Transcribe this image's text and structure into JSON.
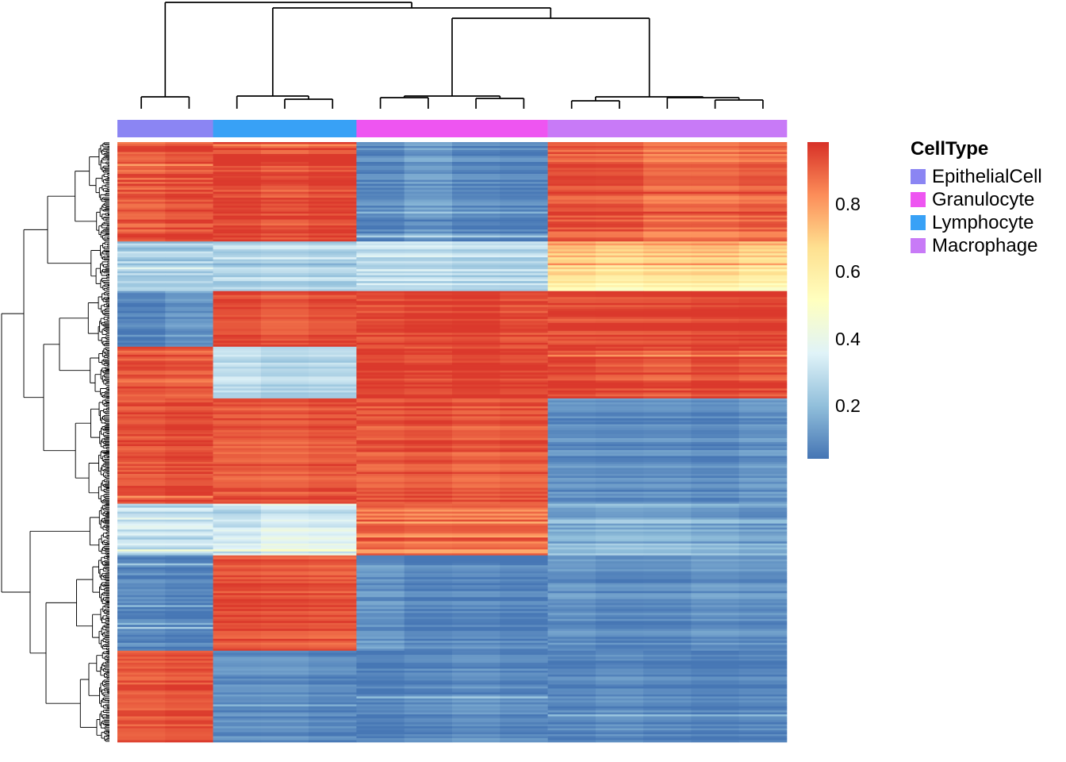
{
  "figure": {
    "kind": "clustered-heatmap"
  },
  "legend": {
    "title": "CellType",
    "items": [
      {
        "label": "EpithelialCell",
        "color": "#8b85f3"
      },
      {
        "label": "Granulocyte",
        "color": "#ee55f1"
      },
      {
        "label": "Lymphocyte",
        "color": "#38a1f6"
      },
      {
        "label": "Macrophage",
        "color": "#c87af7"
      }
    ]
  },
  "colorbar": {
    "ticks": [
      "0.8",
      "0.6",
      "0.4",
      "0.2"
    ],
    "domain": [
      0.04,
      0.99
    ],
    "palette": [
      "#4575b4",
      "#91bfdb",
      "#e0f3f8",
      "#ffffbf",
      "#fee090",
      "#fc8d59",
      "#d73027"
    ]
  },
  "chart_data": {
    "type": "heatmap",
    "value_range": [
      0.04,
      0.99
    ],
    "colormap": "RdYlBu reversed (blue=low, red=high)",
    "clustering": {
      "rows": true,
      "columns": true
    },
    "col_groups": [
      {
        "name": "EpithelialCell",
        "n_cols": 2,
        "color": "#8b85f3"
      },
      {
        "name": "Lymphocyte",
        "n_cols": 3,
        "color": "#38a1f6"
      },
      {
        "name": "Granulocyte",
        "n_cols": 4,
        "color": "#ee55f1"
      },
      {
        "name": "Macrophage",
        "n_cols": 5,
        "color": "#c87af7"
      }
    ],
    "row_blocks": [
      {
        "id": "A",
        "n_rows": 50,
        "sd": 0.055,
        "means": {
          "EpithelialCell": 0.93,
          "Lymphocyte": 0.94,
          "Granulocyte": 0.1,
          "Macrophage": 0.89
        }
      },
      {
        "id": "B",
        "n_rows": 25,
        "sd": 0.075,
        "means": {
          "EpithelialCell": 0.24,
          "Lymphocyte": 0.27,
          "Granulocyte": 0.28,
          "Macrophage": 0.78
        },
        "trend": {
          "Macrophage": -0.22
        }
      },
      {
        "id": "C",
        "n_rows": 28,
        "sd": 0.05,
        "means": {
          "EpithelialCell": 0.1,
          "Lymphocyte": 0.95,
          "Granulocyte": 0.95,
          "Macrophage": 0.95
        }
      },
      {
        "id": "D",
        "n_rows": 26,
        "sd": 0.055,
        "means": {
          "EpithelialCell": 0.94,
          "Lymphocyte": 0.29,
          "Granulocyte": 0.95,
          "Macrophage": 0.94
        }
      },
      {
        "id": "E",
        "n_rows": 53,
        "sd": 0.05,
        "means": {
          "EpithelialCell": 0.94,
          "Lymphocyte": 0.92,
          "Granulocyte": 0.94,
          "Macrophage": 0.1
        }
      },
      {
        "id": "F",
        "n_rows": 26,
        "sd": 0.09,
        "means": {
          "EpithelialCell": 0.28,
          "Lymphocyte": 0.33,
          "Granulocyte": 0.88,
          "Macrophage": 0.16
        }
      },
      {
        "id": "G",
        "n_rows": 48,
        "sd": 0.05,
        "means": {
          "EpithelialCell": 0.09,
          "Lymphocyte": 0.93,
          "Granulocyte": 0.09,
          "Macrophage": 0.09
        }
      },
      {
        "id": "H",
        "n_rows": 46,
        "sd": 0.045,
        "means": {
          "EpithelialCell": 0.94,
          "Lymphocyte": 0.09,
          "Granulocyte": 0.08,
          "Macrophage": 0.08
        }
      }
    ]
  }
}
